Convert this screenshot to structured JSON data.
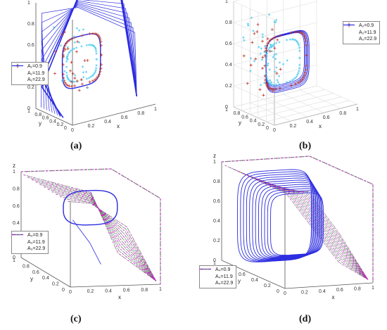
{
  "colors": {
    "series1": "#43c7ef",
    "series2": "#c0392b",
    "series3": "#2b2be0",
    "series2_lines": "#22cc22",
    "series3_lines": "#cc22cc",
    "axis": "#555555",
    "grid": "#dddddd"
  },
  "chart_data": [
    {
      "panel_label": "(a)",
      "type": "line",
      "xlabel": "x",
      "ylabel": "y",
      "zlabel": "z",
      "x_ticks": [
        "0",
        "0.2",
        "0.4",
        "0.6",
        "0.8",
        "1"
      ],
      "y_ticks": [
        "0",
        "0.2",
        "0.4",
        "0.6",
        "0.8",
        "1"
      ],
      "z_ticks": [
        "0",
        "0.2",
        "0.4",
        "0.6",
        "0.8",
        "1"
      ],
      "xlim": [
        0,
        1
      ],
      "ylim": [
        0,
        1
      ],
      "zlim": [
        0,
        1
      ],
      "grid": false,
      "legend_position": "left",
      "series": [
        {
          "name": "A₁=0.9",
          "marker": "star",
          "symbol": "✶"
        },
        {
          "name": "A₁=11.9",
          "marker": "plus",
          "symbol": "+"
        },
        {
          "name": "A₁=22.9",
          "marker": "line",
          "symbol": ""
        }
      ]
    },
    {
      "panel_label": "(b)",
      "type": "line",
      "xlabel": "x",
      "ylabel": "y",
      "zlabel": "z",
      "x_ticks": [
        "0",
        "0.2",
        "0.4",
        "0.6",
        "0.8",
        "1"
      ],
      "y_ticks": [
        "0",
        "0.2",
        "0.4",
        "0.6",
        "0.8",
        "1"
      ],
      "z_ticks": [
        "0",
        "0.2",
        "0.4",
        "0.6",
        "0.8",
        "1"
      ],
      "xlim": [
        0,
        1
      ],
      "ylim": [
        0,
        1
      ],
      "zlim": [
        0,
        1
      ],
      "grid": true,
      "legend_position": "top-right",
      "series": [
        {
          "name": "A₂=0.9",
          "marker": "star",
          "symbol": "✶"
        },
        {
          "name": "A₂=11.9",
          "marker": "plus",
          "symbol": "+"
        },
        {
          "name": "A₂=22.9",
          "marker": "line",
          "symbol": ""
        }
      ]
    },
    {
      "panel_label": "(c)",
      "type": "line",
      "xlabel": "x",
      "ylabel": "y",
      "zlabel": "z",
      "x_ticks": [
        "0",
        "0.2",
        "0.4",
        "0.6",
        "0.8",
        "1"
      ],
      "y_ticks": [
        "0",
        "0.2",
        "0.4",
        "0.6",
        "0.8",
        "1"
      ],
      "z_ticks": [
        "0",
        "0.2",
        "0.4",
        "0.6",
        "0.8",
        "1"
      ],
      "xlim": [
        0,
        1
      ],
      "ylim": [
        0,
        1
      ],
      "zlim": [
        0,
        1
      ],
      "grid": false,
      "legend_position": "bottom-left",
      "series": [
        {
          "name": "A₃=0.9",
          "marker": "solid",
          "symbol": ""
        },
        {
          "name": "A₃=11.9",
          "marker": "dashed",
          "symbol": ""
        },
        {
          "name": "A₃=22.9",
          "marker": "dash-dot",
          "symbol": ""
        }
      ]
    },
    {
      "panel_label": "(d)",
      "type": "line",
      "xlabel": "x",
      "ylabel": "y",
      "zlabel": "z",
      "x_ticks": [
        "0",
        "0.2",
        "0.4",
        "0.6",
        "0.8",
        "1"
      ],
      "y_ticks": [
        "0",
        "0.2",
        "0.4",
        "0.6",
        "0.8",
        "1"
      ],
      "z_ticks": [
        "0",
        "0.2",
        "0.4",
        "0.6",
        "0.8",
        "1"
      ],
      "xlim": [
        0,
        1
      ],
      "ylim": [
        0,
        1
      ],
      "zlim": [
        0,
        1
      ],
      "grid": false,
      "legend_position": "bottom-left",
      "series": [
        {
          "name": "A₄=0.9",
          "marker": "solid",
          "symbol": ""
        },
        {
          "name": "A₄=11.9",
          "marker": "dashed",
          "symbol": ""
        },
        {
          "name": "A₄=22.9",
          "marker": "dash-dot",
          "symbol": ""
        }
      ]
    }
  ]
}
